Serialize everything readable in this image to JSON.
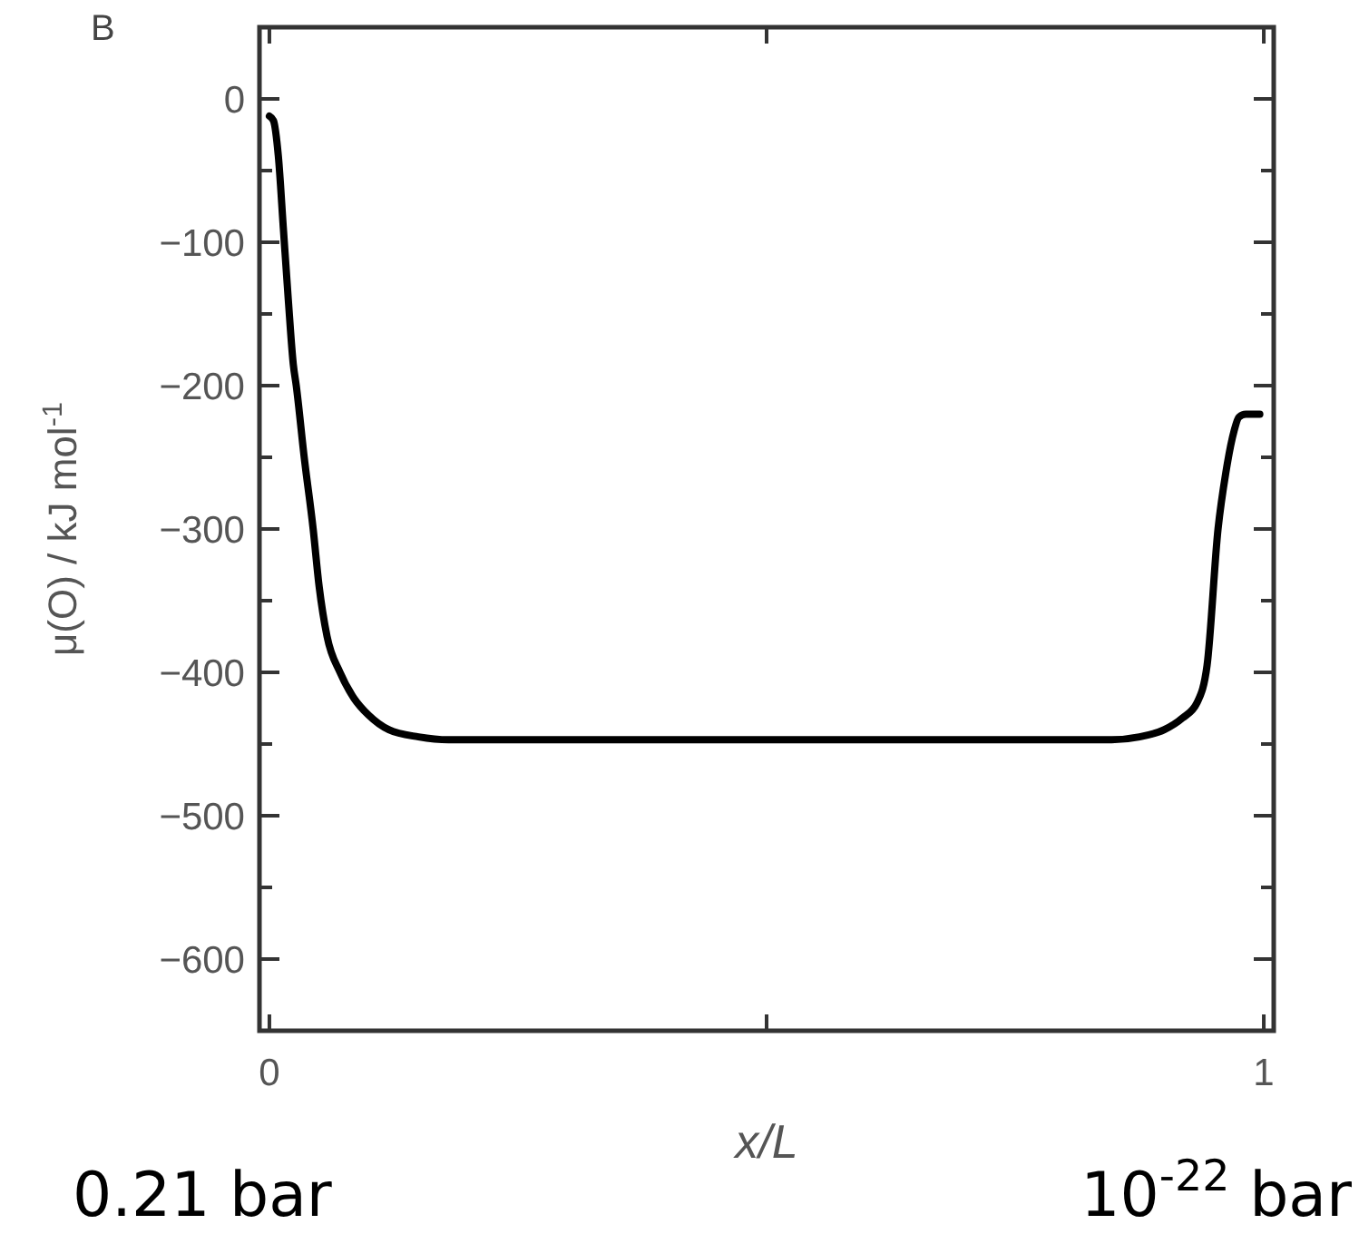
{
  "chart_data": {
    "type": "line",
    "xlabel": "x/L",
    "ylabel": "μ(O) / kJ mol$^{-1}$",
    "annotations": [
      "B",
      "0.21 bar",
      "10$^{-22}$ bar"
    ],
    "xlim": [
      -0.01,
      1.01
    ],
    "ylim": [
      -650,
      50
    ],
    "xticks": [
      0,
      {
        "value": 0.5,
        "label": null
      },
      1
    ],
    "yticks": [
      {
        "value": 50,
        "label": null
      },
      0,
      {
        "value": -50,
        "label": null
      },
      -100,
      {
        "value": -150,
        "label": null
      },
      -200,
      {
        "value": -250,
        "label": null
      },
      -300,
      {
        "value": -350,
        "label": null
      },
      -400,
      {
        "value": -450,
        "label": null
      },
      -500,
      {
        "value": -550,
        "label": null
      },
      -600
    ],
    "grid": false,
    "marker": "none",
    "line_style": "solid",
    "series": [
      {
        "color": "#000000",
        "x": [
          0,
          0.004,
          0.009,
          0.014,
          0.019,
          0.024,
          0.027,
          0.035,
          0.044,
          0.05,
          0.058,
          0.071,
          0.085,
          0.1,
          0.12,
          0.15,
          0.18,
          0.3,
          0.5,
          0.7,
          0.847,
          0.875,
          0.9,
          0.918,
          0.933,
          0.943,
          0.954,
          0.962,
          0.97,
          0.975,
          0.982,
          0.99,
          0.996
        ],
        "values": [
          -12,
          -15,
          -40,
          -90,
          -140,
          -185,
          -200,
          -250,
          -300,
          -340,
          -375,
          -400,
          -418,
          -430,
          -440,
          -445,
          -447,
          -447,
          -447,
          -447,
          -447,
          -445,
          -440,
          -432,
          -421,
          -395,
          -300,
          -260,
          -232,
          -222,
          -220,
          -220,
          -220
        ]
      }
    ]
  }
}
